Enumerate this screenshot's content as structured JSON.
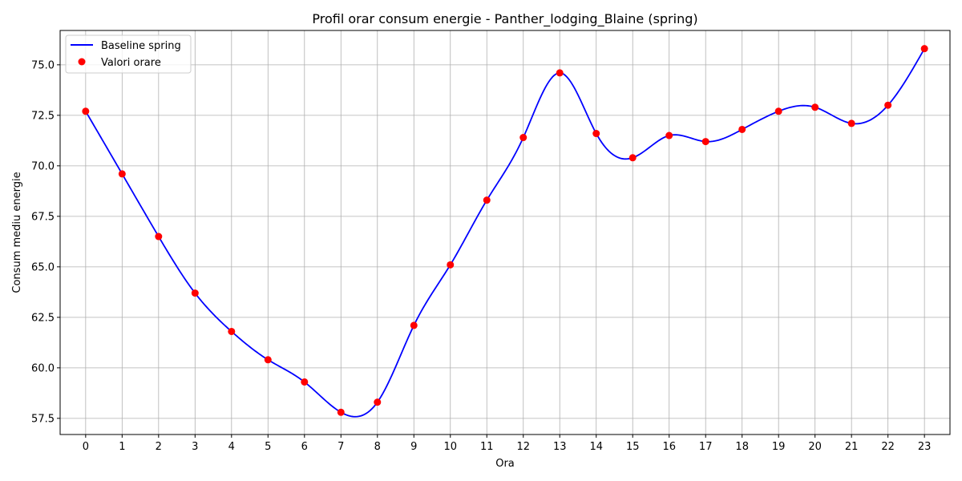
{
  "chart_data": {
    "type": "line",
    "title": "Profil orar consum energie - Panther_lodging_Blaine (spring)",
    "xlabel": "Ora",
    "ylabel": "Consum mediu energie",
    "x": [
      0,
      1,
      2,
      3,
      4,
      5,
      6,
      7,
      8,
      9,
      10,
      11,
      12,
      13,
      14,
      15,
      16,
      17,
      18,
      19,
      20,
      21,
      22,
      23
    ],
    "x_tick_labels": [
      "0",
      "1",
      "2",
      "3",
      "4",
      "5",
      "6",
      "7",
      "8",
      "9",
      "10",
      "11",
      "12",
      "13",
      "14",
      "15",
      "16",
      "17",
      "18",
      "19",
      "20",
      "21",
      "22",
      "23"
    ],
    "y_ticks": [
      57.5,
      60.0,
      62.5,
      65.0,
      67.5,
      70.0,
      72.5,
      75.0
    ],
    "y_tick_labels": [
      "57.5",
      "60.0",
      "62.5",
      "65.0",
      "67.5",
      "70.0",
      "72.5",
      "75.0"
    ],
    "ylim": [
      56.7,
      76.7
    ],
    "xlim": [
      -0.7,
      23.7
    ],
    "series": [
      {
        "name": "Baseline spring",
        "kind": "line",
        "color": "#0000ff",
        "values": [
          72.7,
          69.6,
          66.5,
          63.7,
          61.8,
          60.4,
          59.3,
          57.8,
          58.3,
          62.1,
          65.1,
          68.3,
          71.4,
          74.6,
          71.6,
          70.4,
          71.5,
          71.2,
          71.8,
          72.7,
          72.9,
          72.1,
          73.0,
          75.8
        ]
      },
      {
        "name": "Valori orare",
        "kind": "scatter",
        "color": "#ff0000",
        "values": [
          72.7,
          69.6,
          66.5,
          63.7,
          61.8,
          60.4,
          59.3,
          57.8,
          58.3,
          62.1,
          65.1,
          68.3,
          71.4,
          74.6,
          71.6,
          70.4,
          71.5,
          71.2,
          71.8,
          72.7,
          72.9,
          72.1,
          73.0,
          75.8
        ]
      }
    ],
    "grid": true,
    "legend_position": "top-left"
  }
}
